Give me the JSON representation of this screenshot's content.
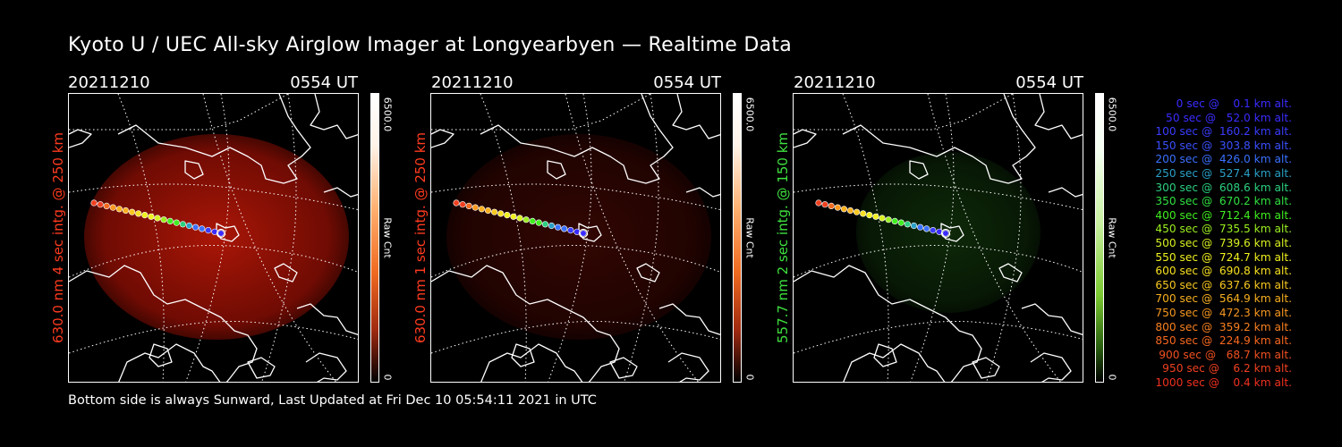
{
  "title": "Kyoto U / UEC All-sky Airglow Imager at Longyearbyen — Realtime Data",
  "footer": "Bottom side is always Sunward, Last Updated at Fri Dec 10 05:54:11 2021 in UTC",
  "panels": [
    {
      "date": "20211210",
      "time": "0554 UT",
      "label": "630.0 nm 4 sec intg. @ 250 km",
      "label_color": "#ff3b1f",
      "cbar_max": "6500.0",
      "cbar_unit": "Raw Cnt",
      "cbar_min": "0",
      "colormap": "red",
      "glow_strength": 0.85
    },
    {
      "date": "20211210",
      "time": "0554 UT",
      "label": "630.0 nm 1 sec intg. @ 250 km",
      "label_color": "#ff3b1f",
      "cbar_max": "6500.0",
      "cbar_unit": "Raw Cnt",
      "cbar_min": "0",
      "colormap": "red",
      "glow_strength": 0.25
    },
    {
      "date": "20211210",
      "time": "0554 UT",
      "label": "557.7 nm 2 sec intg. @ 150 km",
      "label_color": "#3fe040",
      "cbar_max": "6500.0",
      "cbar_unit": "Raw Cnt",
      "cbar_min": "0",
      "colormap": "green",
      "glow_strength": 0.45
    }
  ],
  "legend": [
    {
      "text": "   0 sec @    0.1 km alt.",
      "color": "#3a2cff"
    },
    {
      "text": "  50 sec @   52.0 km alt.",
      "color": "#3a2cff"
    },
    {
      "text": " 100 sec @  160.2 km alt.",
      "color": "#3a3cff"
    },
    {
      "text": " 150 sec @  303.8 km alt.",
      "color": "#3a50ff"
    },
    {
      "text": " 200 sec @  426.0 km alt.",
      "color": "#3a70ff"
    },
    {
      "text": " 250 sec @  527.4 km alt.",
      "color": "#2aa0c8"
    },
    {
      "text": " 300 sec @  608.6 km alt.",
      "color": "#2cd080"
    },
    {
      "text": " 350 sec @  670.2 km alt.",
      "color": "#30e040"
    },
    {
      "text": " 400 sec @  712.4 km alt.",
      "color": "#40ee20"
    },
    {
      "text": " 450 sec @  735.5 km alt.",
      "color": "#9cf020"
    },
    {
      "text": " 500 sec @  739.6 km alt.",
      "color": "#d8f020"
    },
    {
      "text": " 550 sec @  724.7 km alt.",
      "color": "#f0f020"
    },
    {
      "text": " 600 sec @  690.8 km alt.",
      "color": "#f8e020"
    },
    {
      "text": " 650 sec @  637.6 km alt.",
      "color": "#f8c820"
    },
    {
      "text": " 700 sec @  564.9 km alt.",
      "color": "#f8b020"
    },
    {
      "text": " 750 sec @  472.3 km alt.",
      "color": "#f89820"
    },
    {
      "text": " 800 sec @  359.2 km alt.",
      "color": "#f88020"
    },
    {
      "text": " 850 sec @  224.9 km alt.",
      "color": "#f86820"
    },
    {
      "text": " 900 sec @   68.7 km alt.",
      "color": "#f05020"
    },
    {
      "text": " 950 sec @    6.2 km alt.",
      "color": "#f04020"
    },
    {
      "text": "1000 sec @    0.4 km alt.",
      "color": "#f03020"
    }
  ]
}
